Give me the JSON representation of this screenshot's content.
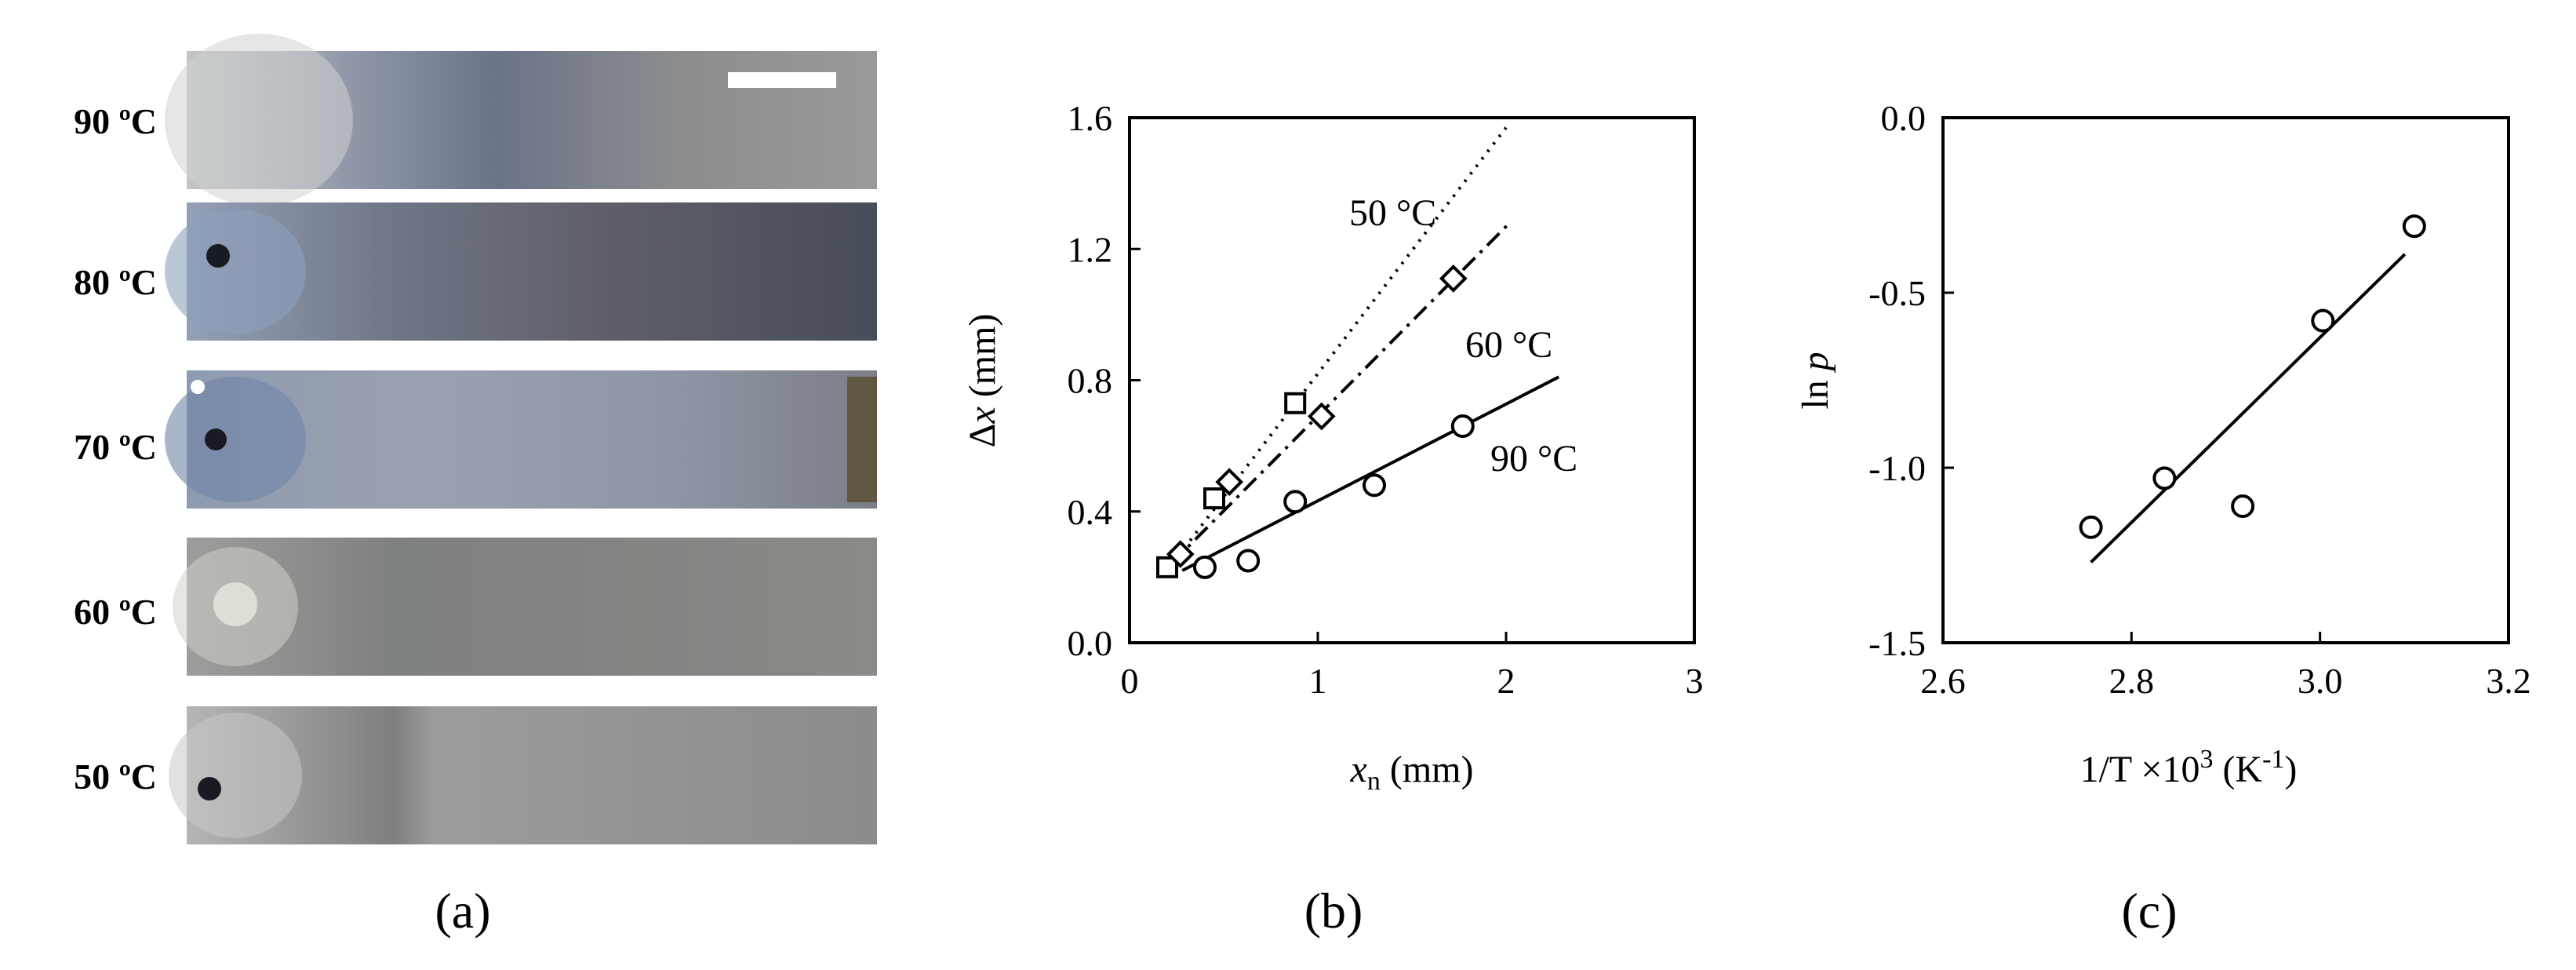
{
  "panel_a": {
    "strip_labels": [
      "90 ºC",
      "80 ºC",
      "70 ºC",
      "60 ºC",
      "50 ºC"
    ],
    "caption": "(a)"
  },
  "chart_data": [
    {
      "type": "scatter",
      "panel": "(b)",
      "xlabel_italic": "x",
      "xlabel_sub": "n",
      "xlabel_rest": " (mm)",
      "ylabel_symbol": "Δ",
      "ylabel_italic": "x",
      "ylabel_rest": " (mm)",
      "xlim": [
        0,
        3
      ],
      "ylim": [
        0,
        1.6
      ],
      "xticks": [
        0,
        1,
        2,
        3
      ],
      "xtick_labels": [
        "0",
        "1",
        "2",
        "3"
      ],
      "yticks": [
        0,
        0.4,
        0.8,
        1.2,
        1.6
      ],
      "ytick_labels": [
        "0.0",
        "0.4",
        "0.8",
        "1.2",
        "1.6"
      ],
      "grid": false,
      "series": [
        {
          "name": "50 °C",
          "marker": "square",
          "line_style": "dotted",
          "x": [
            0.2,
            0.45,
            0.88
          ],
          "y": [
            0.23,
            0.44,
            0.73
          ],
          "fit_x": [
            0.2,
            2.0
          ],
          "fit_y": [
            0.22,
            1.57
          ]
        },
        {
          "name": "60 °C",
          "marker": "diamond",
          "line_style": "dashdot",
          "x": [
            0.27,
            0.53,
            1.02,
            1.72
          ],
          "y": [
            0.27,
            0.49,
            0.69,
            1.11
          ],
          "fit_x": [
            0.22,
            2.02
          ],
          "fit_y": [
            0.24,
            1.28
          ]
        },
        {
          "name": "90 °C",
          "marker": "circle",
          "line_style": "solid",
          "x": [
            0.4,
            0.63,
            0.88,
            1.3,
            1.77
          ],
          "y": [
            0.23,
            0.25,
            0.43,
            0.48,
            0.66
          ],
          "fit_x": [
            0.28,
            2.28
          ],
          "fit_y": [
            0.22,
            0.81
          ]
        }
      ],
      "caption": "(b)"
    },
    {
      "type": "scatter",
      "panel": "(c)",
      "xlabel_pre": "1/T ×10",
      "xlabel_sup": "3",
      "xlabel_mid": " (K",
      "xlabel_sup2": "-1",
      "xlabel_post": ")",
      "ylabel_pre": "ln ",
      "ylabel_italic": "p",
      "xlim": [
        2.6,
        3.2
      ],
      "ylim": [
        -1.5,
        0.0
      ],
      "xticks": [
        2.6,
        2.8,
        3.0,
        3.2
      ],
      "xtick_labels": [
        "2.6",
        "2.8",
        "3.0",
        "3.2"
      ],
      "yticks": [
        -1.5,
        -1.0,
        -0.5,
        0.0
      ],
      "ytick_labels": [
        "-1.5",
        "-1.0",
        "-0.5",
        "0.0"
      ],
      "grid": false,
      "series": [
        {
          "marker": "circle",
          "x": [
            2.757,
            2.835,
            2.918,
            3.003,
            3.1
          ],
          "y": [
            -1.17,
            -1.03,
            -1.11,
            -0.58,
            -0.31
          ],
          "fit_x": [
            2.757,
            3.09
          ],
          "fit_y": [
            -1.27,
            -0.39
          ]
        }
      ],
      "caption": "(c)"
    }
  ]
}
